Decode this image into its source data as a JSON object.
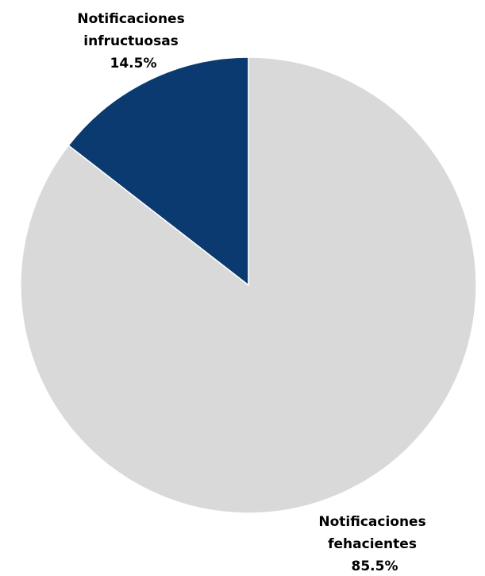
{
  "chart_data": {
    "type": "pie",
    "slices": [
      {
        "label_lines": [
          "Notificaciones",
          "infructuosas"
        ],
        "value": 14.5,
        "value_label": "14.5%",
        "color": "#0a3a70"
      },
      {
        "label_lines": [
          "Notificaciones",
          "fehacientes"
        ],
        "value": 85.5,
        "value_label": "85.5%",
        "color": "#d9d9d9"
      }
    ],
    "start": "12 o'clock",
    "direction": "counterclockwise",
    "legend": "none",
    "label_position": "outside"
  }
}
